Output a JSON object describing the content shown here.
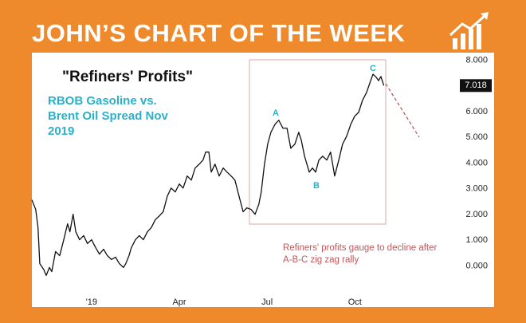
{
  "header": {
    "title": "JOHN’S CHART OF THE WEEK"
  },
  "chart_data": {
    "type": "line",
    "title": "\"Refiners' Profits\"",
    "subtitle": "RBOB Gasoline vs. Brent Oil Spread Nov 2019",
    "annotations": {
      "a": "A",
      "b": "B",
      "c": "C",
      "note": "Refiners' profits gauge to decline after A-B-C zig zag rally"
    },
    "xlim": [
      -2.04,
      13.76
    ],
    "xticks": [
      {
        "value": 0,
        "label": "'19"
      },
      {
        "value": 3,
        "label": "Apr"
      },
      {
        "value": 6,
        "label": "Jul"
      },
      {
        "value": 9,
        "label": "Oct"
      }
    ],
    "ylim": [
      -1.6,
      8.3
    ],
    "yticks": [
      {
        "value": 0,
        "label": "0.000"
      },
      {
        "value": 1,
        "label": "1.000"
      },
      {
        "value": 2,
        "label": "2.000"
      },
      {
        "value": 3,
        "label": "3.000"
      },
      {
        "value": 4,
        "label": "4.000"
      },
      {
        "value": 5,
        "label": "5.000"
      },
      {
        "value": 6,
        "label": "6.000"
      },
      {
        "value": 7,
        "label": "7.000"
      },
      {
        "value": 8,
        "label": "8.000"
      }
    ],
    "grid": false,
    "x": [
      -2.04,
      -1.91,
      -1.83,
      -1.77,
      -1.63,
      -1.55,
      -1.44,
      -1.36,
      -1.23,
      -1.09,
      -0.95,
      -0.82,
      -0.74,
      -0.63,
      -0.54,
      -0.41,
      -0.27,
      -0.14,
      0,
      0.14,
      0.27,
      0.41,
      0.54,
      0.68,
      0.82,
      0.95,
      1.09,
      1.17,
      1.28,
      1.36,
      1.5,
      1.63,
      1.77,
      1.91,
      2.04,
      2.18,
      2.32,
      2.45,
      2.59,
      2.72,
      2.86,
      3,
      3.13,
      3.27,
      3.41,
      3.54,
      3.68,
      3.81,
      3.9,
      4.01,
      4.09,
      4.22,
      4.36,
      4.5,
      4.63,
      4.77,
      4.9,
      5.04,
      5.18,
      5.31,
      5.45,
      5.59,
      5.72,
      5.8,
      5.91,
      6.02,
      6.13,
      6.27,
      6.4,
      6.54,
      6.68,
      6.81,
      6.95,
      7.08,
      7.17,
      7.28,
      7.44,
      7.55,
      7.66,
      7.77,
      7.9,
      8.04,
      8.17,
      8.31,
      8.45,
      8.58,
      8.72,
      8.86,
      8.99,
      9.13,
      9.26,
      9.4,
      9.54,
      9.62,
      9.73,
      9.81,
      9.89,
      9.99
    ],
    "series": [
      {
        "name": "RBOB Gasoline vs. Brent Oil Spread",
        "color": "#111111",
        "values": [
          2.57,
          2.2,
          1.49,
          0.09,
          -0.15,
          -0.37,
          -0.06,
          -0.22,
          0.56,
          0.4,
          1.02,
          1.64,
          1.33,
          2.01,
          1.33,
          1.02,
          1.18,
          0.87,
          1.02,
          0.71,
          0.46,
          0.65,
          0.4,
          0.25,
          0.34,
          0.09,
          -0.06,
          0.09,
          0.4,
          0.71,
          1.02,
          1.18,
          1.02,
          1.33,
          1.49,
          1.8,
          1.95,
          2.11,
          2.72,
          3.03,
          2.88,
          3.19,
          3.03,
          3.5,
          3.34,
          3.81,
          3.96,
          4.12,
          4.43,
          4.43,
          3.65,
          3.96,
          3.5,
          3.81,
          3.65,
          3.5,
          3.34,
          2.72,
          2.11,
          2.26,
          2.2,
          2.01,
          2.41,
          2.88,
          3.96,
          4.74,
          5.2,
          5.51,
          5.67,
          5.36,
          5.36,
          4.58,
          4.74,
          5.2,
          4.89,
          4.27,
          3.65,
          3.81,
          3.65,
          4.12,
          4.27,
          4.12,
          4.43,
          3.5,
          4.12,
          4.74,
          5.05,
          5.51,
          5.82,
          5.98,
          6.44,
          6.75,
          7.21,
          7.46,
          7.34,
          7.21,
          7.37,
          7.018
        ]
      }
    ]
  }
}
